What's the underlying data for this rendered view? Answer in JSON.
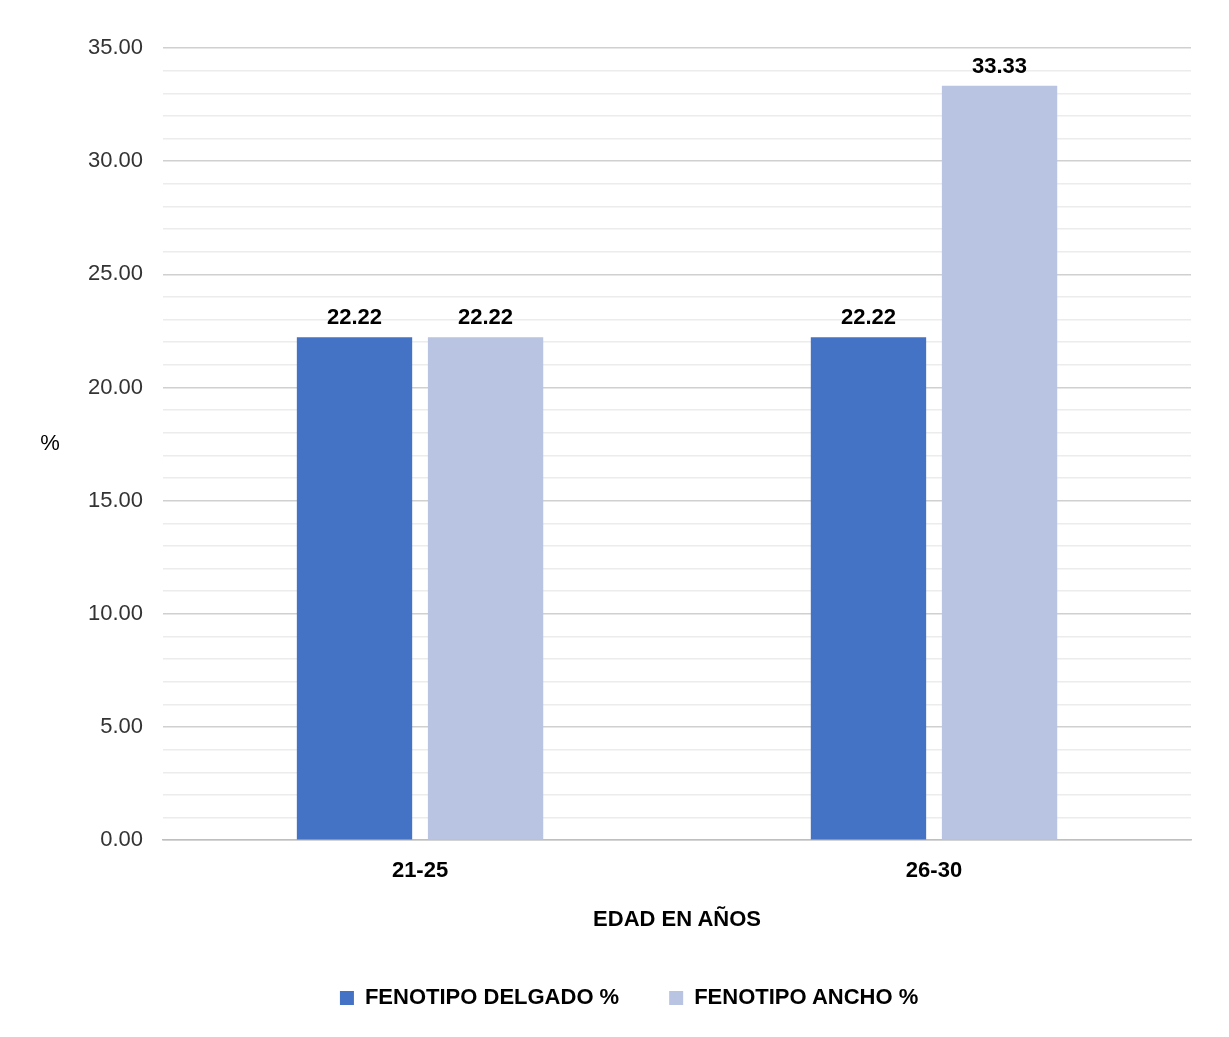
{
  "chart_data": {
    "type": "bar",
    "xlabel": "EDAD EN AÑOS",
    "ylabel": "%",
    "categories": [
      "21-25",
      "26-30"
    ],
    "series": [
      {
        "name": "FENOTIPO DELGADO %",
        "color": "#4472c4",
        "values": [
          22.22,
          22.22
        ]
      },
      {
        "name": "FENOTIPO ANCHO %",
        "color": "#b9c3e2",
        "values": [
          22.22,
          33.33
        ]
      }
    ],
    "ylim": [
      0,
      35
    ],
    "yticks": [
      {
        "value": 0,
        "label": "0.00"
      },
      {
        "value": 1,
        "label": null
      },
      {
        "value": 2,
        "label": null
      },
      {
        "value": 3,
        "label": null
      },
      {
        "value": 4,
        "label": null
      },
      {
        "value": 5,
        "label": "5.00"
      },
      {
        "value": 6,
        "label": null
      },
      {
        "value": 7,
        "label": null
      },
      {
        "value": 8,
        "label": null
      },
      {
        "value": 9,
        "label": null
      },
      {
        "value": 10,
        "label": "10.00"
      },
      {
        "value": 11,
        "label": null
      },
      {
        "value": 12,
        "label": null
      },
      {
        "value": 13,
        "label": null
      },
      {
        "value": 14,
        "label": null
      },
      {
        "value": 15,
        "label": "15.00"
      },
      {
        "value": 16,
        "label": null
      },
      {
        "value": 17,
        "label": null
      },
      {
        "value": 18,
        "label": null
      },
      {
        "value": 19,
        "label": null
      },
      {
        "value": 20,
        "label": "20.00"
      },
      {
        "value": 21,
        "label": null
      },
      {
        "value": 22,
        "label": null
      },
      {
        "value": 23,
        "label": null
      },
      {
        "value": 24,
        "label": null
      },
      {
        "value": 25,
        "label": "25.00"
      },
      {
        "value": 26,
        "label": null
      },
      {
        "value": 27,
        "label": null
      },
      {
        "value": 28,
        "label": null
      },
      {
        "value": 29,
        "label": null
      },
      {
        "value": 30,
        "label": "30.00"
      },
      {
        "value": 31,
        "label": null
      },
      {
        "value": 32,
        "label": null
      },
      {
        "value": 33,
        "label": null
      },
      {
        "value": 34,
        "label": null
      },
      {
        "value": 35,
        "label": "35.00"
      }
    ],
    "grid": true,
    "data_labels": true,
    "legend": "bottom"
  }
}
